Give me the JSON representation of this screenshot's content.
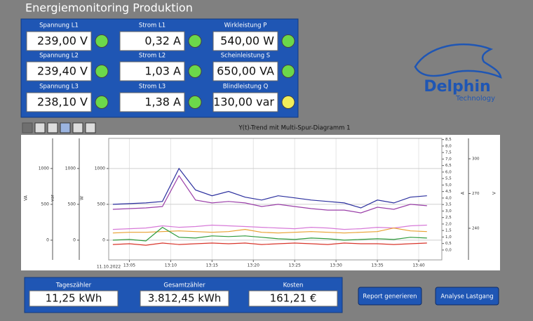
{
  "header": {
    "title": "Energiemonitoring Produktion"
  },
  "meters": [
    {
      "label": "Spannung L1",
      "value": "239,00 V",
      "led": "#6cd84a"
    },
    {
      "label": "Strom L1",
      "value": "0,32 A",
      "led": "#6cd84a"
    },
    {
      "label": "Wirkleistung P",
      "value": "540,00 W",
      "led": "#6cd84a"
    },
    {
      "label": "Spannung L2",
      "value": "239,40 V",
      "led": "#6cd84a"
    },
    {
      "label": "Strom L2",
      "value": "1,03 A",
      "led": "#6cd84a"
    },
    {
      "label": "Scheinleistung S",
      "value": "650,00 VA",
      "led": "#6cd84a"
    },
    {
      "label": "Spannung L3",
      "value": "238,10 V",
      "led": "#6cd84a"
    },
    {
      "label": "Strom L3",
      "value": "1,38 A",
      "led": "#6cd84a"
    },
    {
      "label": "Blindleistung Q",
      "value": "130,00 var",
      "led": "#f2ee5a"
    }
  ],
  "logo": {
    "name": "Delphin",
    "subtitle": "Technology"
  },
  "trend": {
    "title": "Y(t)-Trend mit Multi-Spur-Diagramm 1",
    "date": "11.10.2022",
    "xlim": [
      782.5,
      822.8
    ],
    "xticks": [
      {
        "value": 785,
        "label": "13:05"
      },
      {
        "value": 790,
        "label": "13:10"
      },
      {
        "value": 795,
        "label": "13:15"
      },
      {
        "value": 800,
        "label": "13:20"
      },
      {
        "value": 805,
        "label": "13:25"
      },
      {
        "value": 810,
        "label": "13:30"
      },
      {
        "value": 815,
        "label": "13:35"
      },
      {
        "value": 820,
        "label": "13:40"
      }
    ],
    "ylim": [
      -275,
      1420
    ],
    "left_axes": [
      {
        "label": "VA",
        "ticks": [
          0,
          500,
          1000
        ]
      },
      {
        "label": "var",
        "ticks": [
          0,
          500,
          1000
        ]
      },
      {
        "label": "W",
        "ticks": [
          0,
          500,
          1000
        ]
      }
    ],
    "right_axes": [
      {
        "label": "A",
        "lim": [
          -0.76,
          8.59
        ],
        "ticks": [
          {
            "value": 0,
            "label": "0,0"
          },
          {
            "value": 0.5,
            "label": "0,5"
          },
          {
            "value": 1,
            "label": "1,0"
          },
          {
            "value": 1.5,
            "label": "1,5"
          },
          {
            "value": 2,
            "label": "2,0"
          },
          {
            "value": 2.5,
            "label": "2,5"
          },
          {
            "value": 3,
            "label": "3,0"
          },
          {
            "value": 3.5,
            "label": "3,5"
          },
          {
            "value": 4,
            "label": "4,0"
          },
          {
            "value": 4.5,
            "label": "4,5"
          },
          {
            "value": 5,
            "label": "5,0"
          },
          {
            "value": 5.5,
            "label": "5,5"
          },
          {
            "value": 6,
            "label": "6,0"
          },
          {
            "value": 6.5,
            "label": "6,5"
          },
          {
            "value": 7,
            "label": "7,0"
          },
          {
            "value": 7.5,
            "label": "7,5"
          },
          {
            "value": 8,
            "label": "8,0"
          },
          {
            "value": 8.5,
            "label": "8,5"
          }
        ]
      },
      {
        "label": "V",
        "lim": [
          212.7,
          317.6
        ],
        "ticks": [
          240,
          270,
          300
        ]
      }
    ],
    "x": [
      783,
      785,
      787,
      789,
      791,
      793,
      795,
      797,
      799,
      801,
      803,
      805,
      807,
      809,
      811,
      813,
      815,
      817,
      819,
      821
    ],
    "series": [
      {
        "color": "#2b2f9e",
        "values": [
          500,
          510,
          520,
          540,
          1000,
          700,
          620,
          680,
          600,
          560,
          620,
          590,
          560,
          540,
          520,
          450,
          560,
          520,
          600,
          620
        ]
      },
      {
        "color": "#9a3fa8",
        "values": [
          430,
          440,
          450,
          470,
          900,
          560,
          520,
          540,
          520,
          470,
          500,
          470,
          440,
          420,
          420,
          380,
          460,
          430,
          500,
          480
        ]
      },
      {
        "color": "#d77ad8",
        "values": [
          150,
          160,
          170,
          200,
          180,
          190,
          210,
          200,
          190,
          180,
          170,
          160,
          180,
          170,
          150,
          160,
          180,
          170,
          200,
          210
        ]
      },
      {
        "color": "#e8a030",
        "values": [
          100,
          110,
          110,
          120,
          130,
          120,
          110,
          120,
          150,
          110,
          100,
          110,
          120,
          110,
          100,
          110,
          120,
          170,
          130,
          120
        ]
      },
      {
        "color": "#2e9a3c",
        "values": [
          0,
          10,
          -10,
          180,
          40,
          30,
          60,
          50,
          60,
          40,
          20,
          10,
          30,
          20,
          0,
          10,
          20,
          10,
          40,
          30
        ]
      },
      {
        "color": "#d8352b",
        "values": [
          -60,
          -50,
          -70,
          -40,
          -60,
          -50,
          -40,
          -50,
          -40,
          -60,
          -50,
          -40,
          -50,
          -60,
          -40,
          -50,
          -50,
          -60,
          -50,
          -40
        ]
      }
    ]
  },
  "counters": [
    {
      "label": "Tageszähler",
      "value": "11,25 kWh"
    },
    {
      "label": "Gesamtzähler",
      "value": "3.812,45 kWh"
    },
    {
      "label": "Kosten",
      "value": "161,21 €"
    }
  ],
  "buttons": [
    "Report generieren",
    "Analyse Lastgang"
  ]
}
